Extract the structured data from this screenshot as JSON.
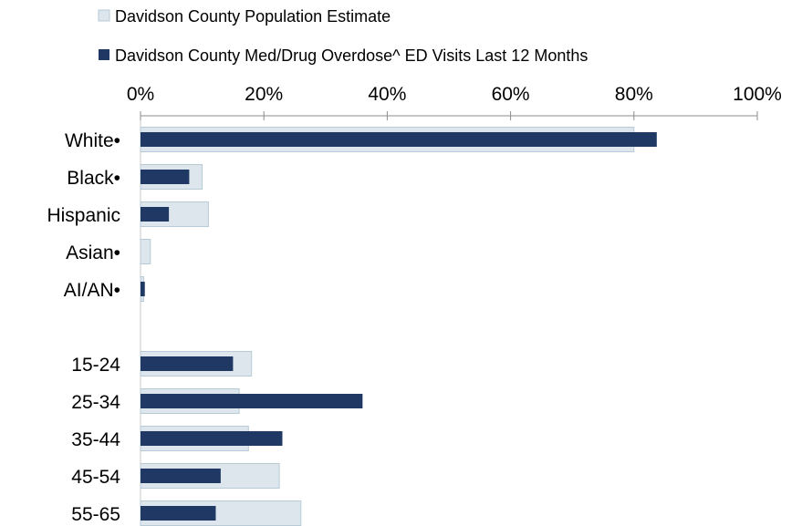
{
  "chart_data": {
    "type": "bar",
    "orientation": "horizontal",
    "xlim": [
      0,
      100
    ],
    "xticks": [
      "0%",
      "20%",
      "40%",
      "60%",
      "80%",
      "100%"
    ],
    "xtick_values": [
      0,
      20,
      40,
      60,
      80,
      100
    ],
    "axis_position": "top",
    "grid": false,
    "legend_placement": "top-left",
    "categories": [
      "White•",
      "Black•",
      "Hispanic",
      "Asian•",
      "AI/AN•",
      "",
      "15-24",
      "25-34",
      "35-44",
      "45-54",
      "55-65"
    ],
    "series": [
      {
        "name": "Davidson County Population Estimate",
        "color": "#dde6ec",
        "border": "#b7cad6",
        "values": [
          80.0,
          10.0,
          11.0,
          1.6,
          0.5,
          null,
          18.0,
          16.0,
          17.5,
          22.5,
          26.0
        ]
      },
      {
        "name": "Davidson County Med/Drug Overdose^ ED Visits Last 12 Months",
        "color": "#1f3864",
        "values": [
          83.7,
          7.9,
          4.6,
          0.0,
          0.7,
          null,
          15.0,
          36.0,
          23.0,
          13.0,
          12.2
        ]
      }
    ]
  }
}
